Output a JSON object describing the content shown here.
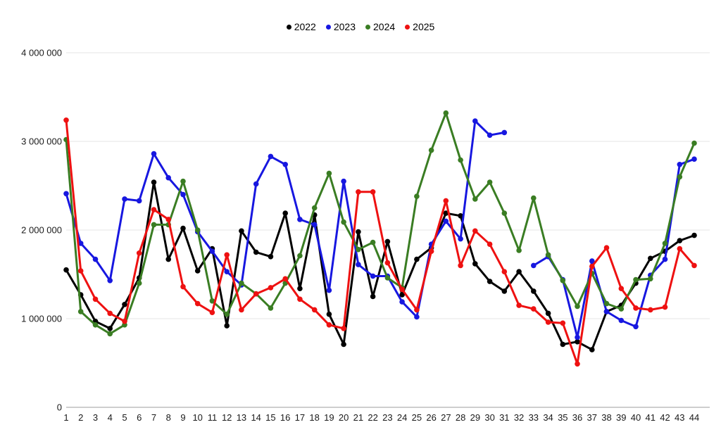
{
  "legend": [
    {
      "label": "2022",
      "color": "#000000"
    },
    {
      "label": "2023",
      "color": "#1717e0"
    },
    {
      "label": "2024",
      "color": "#3a7d23"
    },
    {
      "label": "2025",
      "color": "#ee1111"
    }
  ],
  "chart_data": {
    "type": "line",
    "x": [
      1,
      2,
      3,
      4,
      5,
      6,
      7,
      8,
      9,
      10,
      11,
      12,
      13,
      14,
      15,
      16,
      17,
      18,
      19,
      20,
      21,
      22,
      23,
      24,
      25,
      26,
      27,
      28,
      29,
      30,
      31,
      32,
      33,
      34,
      35,
      36,
      37,
      38,
      39,
      40,
      41,
      42,
      43,
      44
    ],
    "series": [
      {
        "name": "2022",
        "color": "#000000",
        "values": [
          1550000,
          1270000,
          970000,
          890000,
          1160000,
          1460000,
          2540000,
          1670000,
          2020000,
          1540000,
          1790000,
          920000,
          1990000,
          1750000,
          1700000,
          2190000,
          1340000,
          2170000,
          1050000,
          710000,
          1980000,
          1250000,
          1870000,
          1270000,
          1670000,
          1800000,
          2190000,
          2160000,
          1620000,
          1420000,
          1310000,
          1530000,
          1310000,
          1060000,
          710000,
          740000,
          650000,
          1080000,
          1150000,
          1400000,
          1680000,
          1760000,
          1880000,
          1940000
        ]
      },
      {
        "name": "2023",
        "color": "#1717e0",
        "values": [
          2410000,
          1850000,
          1670000,
          1430000,
          2350000,
          2330000,
          2860000,
          2590000,
          2400000,
          1980000,
          1760000,
          1530000,
          1380000,
          2520000,
          2830000,
          2740000,
          2120000,
          2060000,
          1320000,
          2550000,
          1610000,
          1480000,
          1480000,
          1190000,
          1020000,
          1840000,
          2100000,
          1900000,
          3230000,
          3070000,
          3100000,
          null,
          1600000,
          1700000,
          1440000,
          790000,
          1650000,
          1080000,
          980000,
          910000,
          1490000,
          1670000,
          2740000,
          2800000
        ]
      },
      {
        "name": "2024",
        "color": "#3a7d23",
        "values": [
          3020000,
          1080000,
          930000,
          830000,
          930000,
          1400000,
          2060000,
          2060000,
          2550000,
          2000000,
          1200000,
          1050000,
          1400000,
          1280000,
          1120000,
          1400000,
          1710000,
          2250000,
          2640000,
          2090000,
          1780000,
          1860000,
          1460000,
          1350000,
          2380000,
          2900000,
          3320000,
          2790000,
          2350000,
          2540000,
          2190000,
          1770000,
          2360000,
          1720000,
          1430000,
          1140000,
          1510000,
          1170000,
          1110000,
          1440000,
          1450000,
          1850000,
          2600000,
          2980000
        ]
      },
      {
        "name": "2025",
        "color": "#ee1111",
        "values": [
          3240000,
          1540000,
          1220000,
          1060000,
          970000,
          1740000,
          2230000,
          2120000,
          1360000,
          1170000,
          1070000,
          1720000,
          1100000,
          1280000,
          1350000,
          1450000,
          1220000,
          1100000,
          930000,
          890000,
          2430000,
          2430000,
          1630000,
          1330000,
          1100000,
          1760000,
          2330000,
          1600000,
          1990000,
          1840000,
          1530000,
          1150000,
          1110000,
          960000,
          950000,
          490000,
          1590000,
          1800000,
          1340000,
          1120000,
          1100000,
          1130000,
          1790000,
          1600000
        ]
      }
    ],
    "title": "",
    "xlabel": "",
    "ylabel": "",
    "ylim": [
      0,
      4000000
    ],
    "yticks": [
      0,
      1000000,
      2000000,
      3000000,
      4000000
    ],
    "ytick_labels": [
      "0",
      "1 000 000",
      "2 000 000",
      "3 000 000",
      "4 000 000"
    ],
    "grid": "horizontal",
    "legend_position": "top-center"
  },
  "style_colors": {
    "gridline": "#e6e6e6",
    "zero_line": "#9e9e9e",
    "tick_text": "#1a1a1a"
  }
}
